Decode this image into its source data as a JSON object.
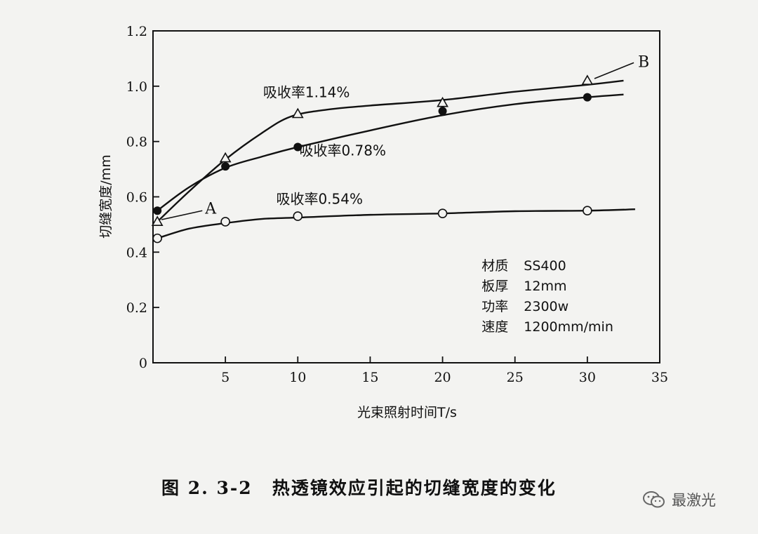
{
  "chart_data": {
    "type": "line",
    "xlabel": "光束照射时间T/s",
    "ylabel": "切缝宽度/mm",
    "xlim": [
      0,
      35
    ],
    "ylim": [
      0,
      1.2
    ],
    "xticks": [
      5,
      10,
      15,
      20,
      25,
      30,
      35
    ],
    "yticks": [
      0,
      0.2,
      0.4,
      0.6,
      0.8,
      1.0,
      1.2
    ],
    "xtick_labels": [
      "5",
      "10",
      "15",
      "20",
      "25",
      "30",
      "35"
    ],
    "ytick_labels": [
      "0",
      "0.2",
      "0.4",
      "0.6",
      "0.8",
      "1.0",
      "1.2"
    ],
    "series": [
      {
        "name": "吸收率1.14%",
        "marker": "triangle-open",
        "points": [
          [
            0.3,
            0.51
          ],
          [
            5,
            0.74
          ],
          [
            10,
            0.9
          ],
          [
            20,
            0.94
          ],
          [
            30,
            1.02
          ]
        ],
        "curve": [
          [
            0.3,
            0.51
          ],
          [
            2.5,
            0.62
          ],
          [
            5,
            0.735
          ],
          [
            7.5,
            0.83
          ],
          [
            9.5,
            0.89
          ],
          [
            12,
            0.915
          ],
          [
            15,
            0.93
          ],
          [
            20,
            0.95
          ],
          [
            25,
            0.98
          ],
          [
            30,
            1.005
          ],
          [
            32.5,
            1.02
          ]
        ]
      },
      {
        "name": "吸收率0.78%",
        "marker": "circle-filled",
        "points": [
          [
            0.3,
            0.55
          ],
          [
            5,
            0.71
          ],
          [
            10,
            0.78
          ],
          [
            20,
            0.91
          ],
          [
            30,
            0.96
          ]
        ],
        "curve": [
          [
            0.3,
            0.55
          ],
          [
            2.5,
            0.635
          ],
          [
            5,
            0.705
          ],
          [
            7.5,
            0.745
          ],
          [
            10,
            0.78
          ],
          [
            15,
            0.84
          ],
          [
            20,
            0.895
          ],
          [
            25,
            0.935
          ],
          [
            30,
            0.96
          ],
          [
            32.5,
            0.97
          ]
        ]
      },
      {
        "name": "吸收率0.54%",
        "marker": "circle-open",
        "points": [
          [
            0.3,
            0.45
          ],
          [
            5,
            0.51
          ],
          [
            10,
            0.53
          ],
          [
            20,
            0.54
          ],
          [
            30,
            0.55
          ]
        ],
        "curve": [
          [
            0.3,
            0.45
          ],
          [
            2.5,
            0.485
          ],
          [
            5,
            0.505
          ],
          [
            7.5,
            0.52
          ],
          [
            10,
            0.525
          ],
          [
            15,
            0.535
          ],
          [
            20,
            0.54
          ],
          [
            25,
            0.548
          ],
          [
            30,
            0.55
          ],
          [
            33.3,
            0.555
          ]
        ]
      }
    ],
    "annotations": [
      {
        "text": "A",
        "x": 3.6,
        "y": 0.56,
        "target": [
          0.3,
          0.51
        ]
      },
      {
        "text": "B",
        "x": 33.5,
        "y": 1.09,
        "target": [
          30.2,
          1.02
        ]
      }
    ],
    "series_label_positions": [
      {
        "text": "吸收率1.14%",
        "x": 10.6,
        "y": 0.96
      },
      {
        "text": "吸收率0.78%",
        "x": 13.1,
        "y": 0.75
      },
      {
        "text": "吸收率0.54%",
        "x": 11.5,
        "y": 0.575
      }
    ],
    "conditions": [
      {
        "key": "材质",
        "value": "SS400"
      },
      {
        "key": "板厚",
        "value": "12mm"
      },
      {
        "key": "功率",
        "value": "2300w"
      },
      {
        "key": "速度",
        "value": "1200mm/min"
      }
    ],
    "conditions_anchor": {
      "x": 22.7,
      "y": 0.335
    },
    "grid": false,
    "legend": "none"
  },
  "caption": {
    "number": "图 2. 3-2",
    "text": "热透镜效应引起的切缝宽度的变化"
  },
  "watermark": {
    "text": "最激光",
    "icon": "wechat-icon"
  }
}
